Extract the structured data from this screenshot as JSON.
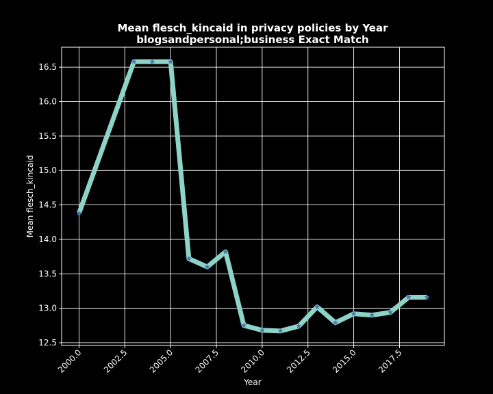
{
  "chart_data": {
    "type": "line",
    "title": "Mean flesch_kincaid in privacy policies by Year",
    "subtitle": "blogsandpersonal;business Exact Match",
    "xlabel": "Year",
    "ylabel": "Mean flesch_kincaid",
    "xlim": [
      1999.05,
      2019.95
    ],
    "ylim": [
      12.46,
      16.79
    ],
    "grid": true,
    "x_ticks": [
      "2000.0",
      "2002.5",
      "2005.0",
      "2007.5",
      "2010.0",
      "2012.5",
      "2015.0",
      "2017.5"
    ],
    "y_ticks": [
      "12.5",
      "13.0",
      "13.5",
      "14.0",
      "14.5",
      "15.0",
      "15.5",
      "16.0",
      "16.5"
    ],
    "x_tick_values": [
      2000,
      2002.5,
      2005,
      2007.5,
      2010,
      2012.5,
      2015,
      2017.5
    ],
    "y_tick_values": [
      12.5,
      13.0,
      13.5,
      14.0,
      14.5,
      15.0,
      15.5,
      16.0,
      16.5
    ],
    "series": [
      {
        "line_color": "#8dd3c7",
        "marker_color": "#4c72b0",
        "marker": "star",
        "x": [
          2000,
          2003,
          2004,
          2005,
          2006,
          2007,
          2008,
          2009,
          2010,
          2011,
          2012,
          2013,
          2014,
          2015,
          2016,
          2017,
          2018,
          2019
        ],
        "y": [
          14.38,
          16.58,
          16.58,
          16.58,
          13.72,
          13.6,
          13.82,
          12.75,
          12.68,
          12.67,
          12.74,
          13.02,
          12.79,
          12.92,
          12.9,
          12.94,
          13.16,
          13.16
        ]
      }
    ]
  },
  "colors": {
    "background": "#000000",
    "axes_edge": "#ffffff",
    "grid": "#ffffff",
    "text": "#ffffff"
  }
}
